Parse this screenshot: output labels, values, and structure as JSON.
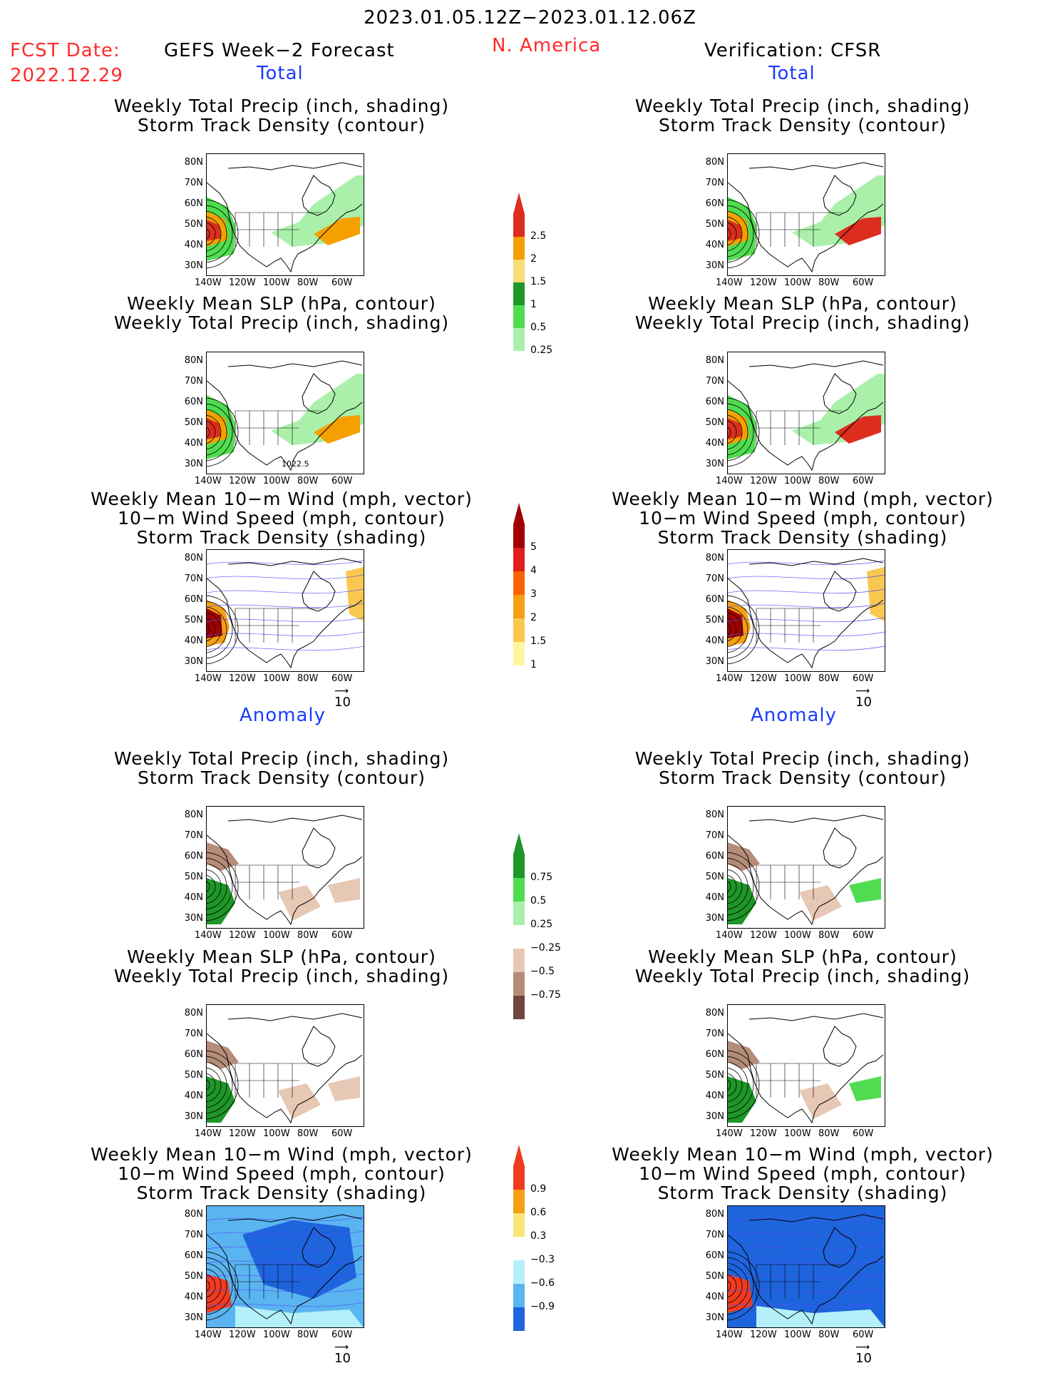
{
  "header": {
    "date_range": "2023.01.05.12Z−2023.01.12.06Z",
    "fcst_label": "FCST Date:",
    "fcst_date": "2022.12.29",
    "model": "GEFS Week−2 Forecast",
    "region": "N. America",
    "verification": "Verification: CFSR"
  },
  "sections": {
    "total": "Total",
    "anomaly": "Anomaly"
  },
  "titles": {
    "precip_storm": [
      "Weekly Total Precip (inch, shading)",
      "Storm Track Density (contour)"
    ],
    "slp_precip": [
      "Weekly Mean SLP (hPa, contour)",
      "Weekly Total Precip (inch, shading)"
    ],
    "wind": [
      "Weekly Mean 10−m Wind (mph, vector)",
      "10−m Wind Speed (mph, contour)",
      "Storm Track Density (shading)"
    ]
  },
  "axes": {
    "lat_ticks": [
      "80N",
      "70N",
      "60N",
      "50N",
      "40N",
      "30N"
    ],
    "lon_ticks": [
      "140W",
      "120W",
      "100W",
      "80W",
      "60W"
    ]
  },
  "map_annotations": {
    "slp_label": "1022.5"
  },
  "vector_ref": "10",
  "colorbars": {
    "precip_total": {
      "labels": [
        "2.5",
        "2",
        "1.5",
        "1",
        "0.5",
        "0.25"
      ],
      "colors": [
        "#dc2d1e",
        "#f5a000",
        "#fadc78",
        "#1e9628",
        "#50dc50",
        "#aaf0aa"
      ]
    },
    "storm_total": {
      "labels": [
        "5",
        "4",
        "3",
        "2",
        "1.5",
        "1"
      ],
      "colors": [
        "#a00000",
        "#e11e1e",
        "#fa6400",
        "#f5a014",
        "#fac850",
        "#fff5a0"
      ]
    },
    "precip_anom": {
      "labels": [
        "0.75",
        "0.5",
        "0.25",
        "−0.25",
        "−0.5",
        "−0.75"
      ],
      "colors": [
        "#1e9628",
        "#50dc50",
        "#aaf0aa",
        "#ffffff",
        "#e6c8b4",
        "#b48c78",
        "#6e463c"
      ]
    },
    "storm_anom": {
      "labels": [
        "0.9",
        "0.6",
        "0.3",
        "−0.3",
        "−0.6",
        "−0.9"
      ],
      "colors": [
        "#f03c1e",
        "#f5a014",
        "#fae678",
        "#ffffff",
        "#b4f0fa",
        "#5ab4f0",
        "#1e64dc"
      ]
    }
  },
  "colors": {
    "red_text": "#ff2a2a",
    "blue_text": "#1a3bff"
  }
}
